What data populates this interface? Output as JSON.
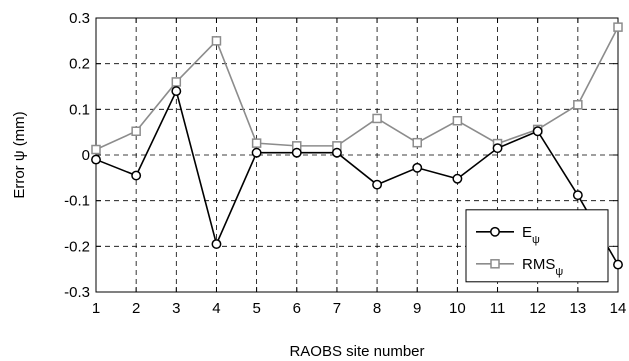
{
  "chart_data": {
    "type": "line",
    "xlabel": "RAOBS site number",
    "ylabel": "Error ψ (mm)",
    "xlim": [
      1,
      14
    ],
    "ylim": [
      -0.3,
      0.3
    ],
    "x_ticks": [
      "1",
      "2",
      "3",
      "4",
      "5",
      "6",
      "7",
      "8",
      "9",
      "10",
      "11",
      "12",
      "13",
      "14"
    ],
    "y_ticks": [
      "0.3",
      "0.2",
      "0.1",
      "0",
      "-0.1",
      "-0.2",
      "-0.3"
    ],
    "y_tick_values": [
      0.3,
      0.2,
      0.1,
      0,
      -0.1,
      -0.2,
      -0.3
    ],
    "grid": true,
    "legend_position": "lower-right",
    "x": [
      1,
      2,
      3,
      4,
      5,
      6,
      7,
      8,
      9,
      10,
      11,
      12,
      13,
      14
    ],
    "series": [
      {
        "name": "E",
        "name_subscript": "ψ",
        "marker": "circle",
        "color": "#000000",
        "values": [
          -0.01,
          -0.045,
          0.14,
          -0.195,
          0.005,
          0.005,
          0.005,
          -0.065,
          -0.028,
          -0.052,
          0.015,
          0.052,
          -0.088,
          -0.24
        ]
      },
      {
        "name": "RMS",
        "name_subscript": "ψ",
        "marker": "square",
        "color": "#8c8c8c",
        "values": [
          0.012,
          0.052,
          0.16,
          0.25,
          0.026,
          0.02,
          0.02,
          0.08,
          0.027,
          0.075,
          0.025,
          0.056,
          0.11,
          0.28
        ]
      }
    ]
  }
}
